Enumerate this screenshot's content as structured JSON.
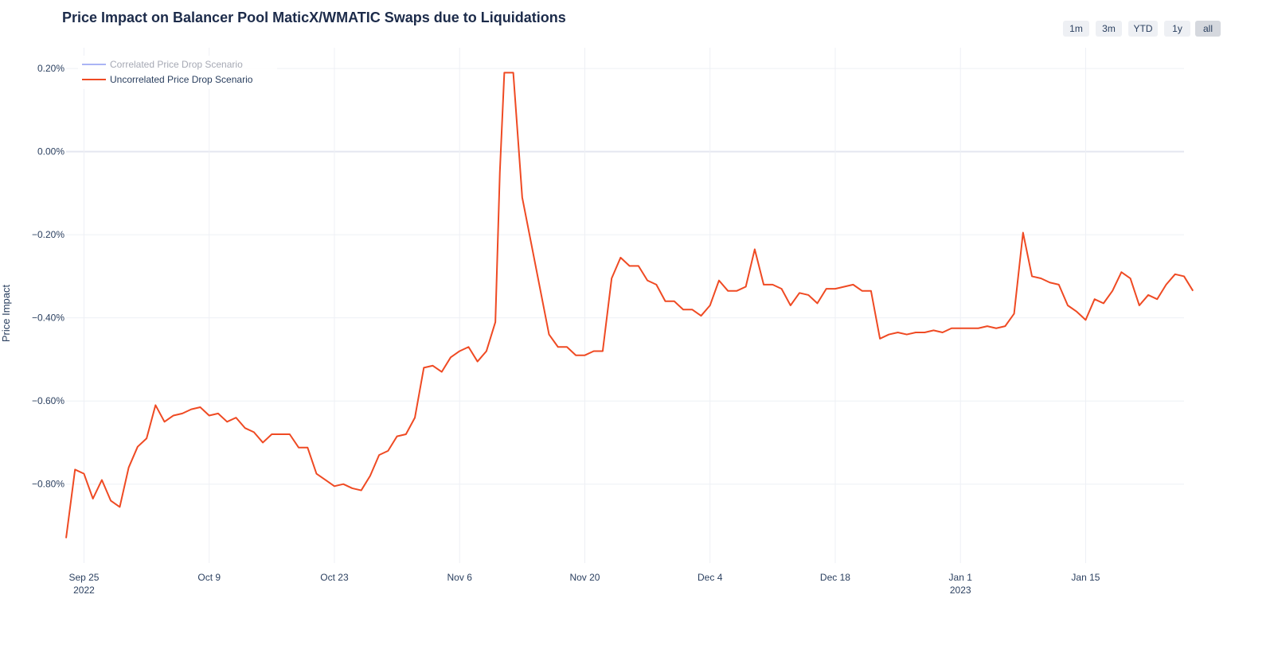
{
  "title": "Price Impact on Balancer Pool MaticX/WMATIC Swaps due to Liquidations",
  "range_buttons": [
    {
      "label": "1m",
      "active": false
    },
    {
      "label": "3m",
      "active": false
    },
    {
      "label": "YTD",
      "active": false
    },
    {
      "label": "1y",
      "active": false
    },
    {
      "label": "all",
      "active": true
    }
  ],
  "chart_data": {
    "type": "line",
    "ylabel": "Price Impact",
    "xlabel": "",
    "y_unit": "%",
    "ylim": [
      -0.99,
      0.25
    ],
    "xlim": [
      "2022-09-23",
      "2023-01-26"
    ],
    "y_ticks": [
      {
        "value": 0.2,
        "label": "0.20%"
      },
      {
        "value": 0.0,
        "label": "0.00%"
      },
      {
        "value": -0.2,
        "label": "−0.20%"
      },
      {
        "value": -0.4,
        "label": "−0.40%"
      },
      {
        "value": -0.6,
        "label": "−0.60%"
      },
      {
        "value": -0.8,
        "label": "−0.80%"
      }
    ],
    "x_ticks": [
      {
        "date": "2022-09-25",
        "label": "Sep 25",
        "sublabel": "2022"
      },
      {
        "date": "2022-10-09",
        "label": "Oct 9",
        "sublabel": ""
      },
      {
        "date": "2022-10-23",
        "label": "Oct 23",
        "sublabel": ""
      },
      {
        "date": "2022-11-06",
        "label": "Nov 6",
        "sublabel": ""
      },
      {
        "date": "2022-11-20",
        "label": "Nov 20",
        "sublabel": ""
      },
      {
        "date": "2022-12-04",
        "label": "Dec 4",
        "sublabel": ""
      },
      {
        "date": "2022-12-18",
        "label": "Dec 18",
        "sublabel": ""
      },
      {
        "date": "2023-01-01",
        "label": "Jan 1",
        "sublabel": "2023"
      },
      {
        "date": "2023-01-15",
        "label": "Jan 15",
        "sublabel": ""
      }
    ],
    "grid": true,
    "legend_position": "top-left",
    "series": [
      {
        "name": "Correlated Price Drop Scenario",
        "color": "#aab4f5",
        "visible": false,
        "points": []
      },
      {
        "name": "Uncorrelated Price Drop Scenario",
        "color": "#ef4a23",
        "visible": true,
        "points": [
          [
            "2022-09-23",
            -0.93
          ],
          [
            "2022-09-24",
            -0.765
          ],
          [
            "2022-09-25",
            -0.775
          ],
          [
            "2022-09-26",
            -0.835
          ],
          [
            "2022-09-27",
            -0.79
          ],
          [
            "2022-09-28",
            -0.84
          ],
          [
            "2022-09-29",
            -0.855
          ],
          [
            "2022-09-30",
            -0.76
          ],
          [
            "2022-10-01",
            -0.71
          ],
          [
            "2022-10-02",
            -0.69
          ],
          [
            "2022-10-03",
            -0.61
          ],
          [
            "2022-10-04",
            -0.65
          ],
          [
            "2022-10-05",
            -0.635
          ],
          [
            "2022-10-06",
            -0.63
          ],
          [
            "2022-10-07",
            -0.62
          ],
          [
            "2022-10-08",
            -0.615
          ],
          [
            "2022-10-09",
            -0.635
          ],
          [
            "2022-10-10",
            -0.63
          ],
          [
            "2022-10-11",
            -0.65
          ],
          [
            "2022-10-12",
            -0.64
          ],
          [
            "2022-10-13",
            -0.665
          ],
          [
            "2022-10-14",
            -0.675
          ],
          [
            "2022-10-15",
            -0.7
          ],
          [
            "2022-10-16",
            -0.68
          ],
          [
            "2022-10-17",
            -0.68
          ],
          [
            "2022-10-18",
            -0.68
          ],
          [
            "2022-10-19",
            -0.712
          ],
          [
            "2022-10-20",
            -0.712
          ],
          [
            "2022-10-21",
            -0.775
          ],
          [
            "2022-10-22",
            -0.79
          ],
          [
            "2022-10-23",
            -0.805
          ],
          [
            "2022-10-24",
            -0.8
          ],
          [
            "2022-10-25",
            -0.81
          ],
          [
            "2022-10-26",
            -0.815
          ],
          [
            "2022-10-27",
            -0.78
          ],
          [
            "2022-10-28",
            -0.73
          ],
          [
            "2022-10-29",
            -0.72
          ],
          [
            "2022-10-30",
            -0.685
          ],
          [
            "2022-10-31",
            -0.68
          ],
          [
            "2022-11-01",
            -0.64
          ],
          [
            "2022-11-02",
            -0.52
          ],
          [
            "2022-11-03",
            -0.515
          ],
          [
            "2022-11-04",
            -0.53
          ],
          [
            "2022-11-05",
            -0.495
          ],
          [
            "2022-11-06",
            -0.48
          ],
          [
            "2022-11-07",
            -0.47
          ],
          [
            "2022-11-08",
            -0.505
          ],
          [
            "2022-11-09",
            -0.48
          ],
          [
            "2022-11-10",
            -0.41
          ],
          [
            "2022-11-10T12:00",
            -0.05
          ],
          [
            "2022-11-11",
            0.19
          ],
          [
            "2022-11-12",
            0.19
          ],
          [
            "2022-11-13",
            -0.11
          ],
          [
            "2022-11-14",
            -0.22
          ],
          [
            "2022-11-15",
            -0.33
          ],
          [
            "2022-11-16",
            -0.44
          ],
          [
            "2022-11-17",
            -0.47
          ],
          [
            "2022-11-18",
            -0.47
          ],
          [
            "2022-11-19",
            -0.49
          ],
          [
            "2022-11-20",
            -0.49
          ],
          [
            "2022-11-21",
            -0.48
          ],
          [
            "2022-11-22",
            -0.48
          ],
          [
            "2022-11-23",
            -0.305
          ],
          [
            "2022-11-24",
            -0.255
          ],
          [
            "2022-11-25",
            -0.275
          ],
          [
            "2022-11-26",
            -0.275
          ],
          [
            "2022-11-27",
            -0.31
          ],
          [
            "2022-11-28",
            -0.32
          ],
          [
            "2022-11-29",
            -0.36
          ],
          [
            "2022-11-30",
            -0.36
          ],
          [
            "2022-12-01",
            -0.38
          ],
          [
            "2022-12-02",
            -0.38
          ],
          [
            "2022-12-03",
            -0.395
          ],
          [
            "2022-12-04",
            -0.37
          ],
          [
            "2022-12-05",
            -0.31
          ],
          [
            "2022-12-06",
            -0.335
          ],
          [
            "2022-12-07",
            -0.335
          ],
          [
            "2022-12-08",
            -0.325
          ],
          [
            "2022-12-09",
            -0.235
          ],
          [
            "2022-12-10",
            -0.32
          ],
          [
            "2022-12-11",
            -0.32
          ],
          [
            "2022-12-12",
            -0.33
          ],
          [
            "2022-12-13",
            -0.37
          ],
          [
            "2022-12-14",
            -0.34
          ],
          [
            "2022-12-15",
            -0.345
          ],
          [
            "2022-12-16",
            -0.365
          ],
          [
            "2022-12-17",
            -0.33
          ],
          [
            "2022-12-18",
            -0.33
          ],
          [
            "2022-12-19",
            -0.325
          ],
          [
            "2022-12-20",
            -0.32
          ],
          [
            "2022-12-21",
            -0.335
          ],
          [
            "2022-12-22",
            -0.335
          ],
          [
            "2022-12-23",
            -0.45
          ],
          [
            "2022-12-24",
            -0.44
          ],
          [
            "2022-12-25",
            -0.435
          ],
          [
            "2022-12-26",
            -0.44
          ],
          [
            "2022-12-27",
            -0.435
          ],
          [
            "2022-12-28",
            -0.435
          ],
          [
            "2022-12-29",
            -0.43
          ],
          [
            "2022-12-30",
            -0.435
          ],
          [
            "2022-12-31",
            -0.425
          ],
          [
            "2023-01-01",
            -0.425
          ],
          [
            "2023-01-02",
            -0.425
          ],
          [
            "2023-01-03",
            -0.425
          ],
          [
            "2023-01-04",
            -0.42
          ],
          [
            "2023-01-05",
            -0.425
          ],
          [
            "2023-01-06",
            -0.42
          ],
          [
            "2023-01-07",
            -0.39
          ],
          [
            "2023-01-08",
            -0.195
          ],
          [
            "2023-01-09",
            -0.3
          ],
          [
            "2023-01-10",
            -0.305
          ],
          [
            "2023-01-11",
            -0.315
          ],
          [
            "2023-01-12",
            -0.32
          ],
          [
            "2023-01-13",
            -0.37
          ],
          [
            "2023-01-14",
            -0.385
          ],
          [
            "2023-01-15",
            -0.405
          ],
          [
            "2023-01-16",
            -0.355
          ],
          [
            "2023-01-17",
            -0.365
          ],
          [
            "2023-01-18",
            -0.335
          ],
          [
            "2023-01-19",
            -0.29
          ],
          [
            "2023-01-20",
            -0.305
          ],
          [
            "2023-01-21",
            -0.37
          ],
          [
            "2023-01-22",
            -0.345
          ],
          [
            "2023-01-23",
            -0.355
          ],
          [
            "2023-01-24",
            -0.32
          ],
          [
            "2023-01-25",
            -0.295
          ],
          [
            "2023-01-26",
            -0.3
          ],
          [
            "2023-01-27",
            -0.335
          ]
        ]
      }
    ]
  }
}
